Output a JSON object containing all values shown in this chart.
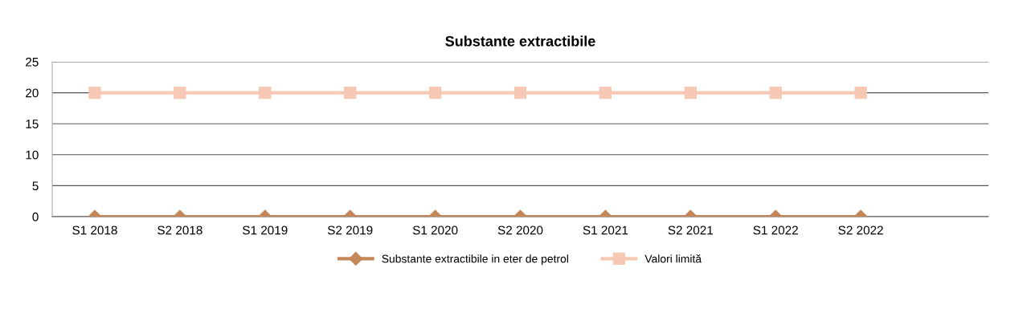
{
  "chart_data": {
    "type": "line",
    "title": "Substante extractibile",
    "categories": [
      "S1 2018",
      "S2 2018",
      "S1 2019",
      "S2 2019",
      "S1 2020",
      "S2 2020",
      "S1 2021",
      "S2 2021",
      "S1 2022",
      "S2 2022",
      null
    ],
    "series": [
      {
        "name": "Substante extractibile in eter de petrol",
        "color": "#c4875a",
        "marker": "diamond",
        "values": [
          0,
          0,
          0,
          0,
          0,
          0,
          0,
          0,
          0,
          0,
          null
        ]
      },
      {
        "name": "Valori limită",
        "color": "#f7c8b4",
        "marker": "square",
        "values": [
          20,
          20,
          20,
          20,
          20,
          20,
          20,
          20,
          20,
          20,
          null
        ]
      }
    ],
    "ylim": [
      0,
      25
    ],
    "yticks": [
      0,
      5,
      10,
      15,
      20,
      25
    ],
    "grid": "y",
    "legend": "bottom",
    "line_style": "solid"
  }
}
